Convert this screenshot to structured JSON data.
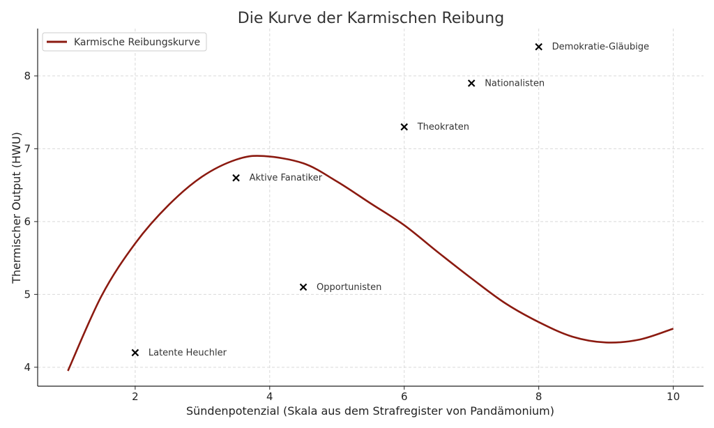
{
  "chart_data": {
    "type": "line",
    "title": "Die Kurve der Karmischen Reibung",
    "xlabel": "Sündenpotenzial (Skala aus dem Strafregister von Pandämonium)",
    "ylabel": "Thermischer Output (HWU)",
    "xlim": [
      0.55,
      10.45
    ],
    "ylim": [
      3.74,
      8.65
    ],
    "xticks": [
      2,
      4,
      6,
      8,
      10
    ],
    "yticks": [
      4,
      5,
      6,
      7,
      8
    ],
    "grid": true,
    "legend_position": "top-left",
    "curve": {
      "name": "Karmische Reibungskurve",
      "color": "#8b1a10",
      "x": [
        1.0,
        1.5,
        2.0,
        2.5,
        3.0,
        3.5,
        3.9,
        4.5,
        5.0,
        5.5,
        6.0,
        6.5,
        7.0,
        7.5,
        8.0,
        8.5,
        9.0,
        9.5,
        10.0
      ],
      "y": [
        3.95,
        4.98,
        5.7,
        6.23,
        6.62,
        6.85,
        6.9,
        6.8,
        6.55,
        6.25,
        5.95,
        5.58,
        5.22,
        4.88,
        4.62,
        4.42,
        4.34,
        4.38,
        4.53
      ]
    },
    "points": [
      {
        "label": "Latente Heuchler",
        "x": 2.0,
        "y": 4.2
      },
      {
        "label": "Aktive Fanatiker",
        "x": 3.5,
        "y": 6.6
      },
      {
        "label": "Opportunisten",
        "x": 4.5,
        "y": 5.1
      },
      {
        "label": "Theokraten",
        "x": 6.0,
        "y": 7.3
      },
      {
        "label": "Nationalisten",
        "x": 7.0,
        "y": 7.9
      },
      {
        "label": "Demokratie-Gläubige",
        "x": 8.0,
        "y": 8.4
      }
    ]
  }
}
